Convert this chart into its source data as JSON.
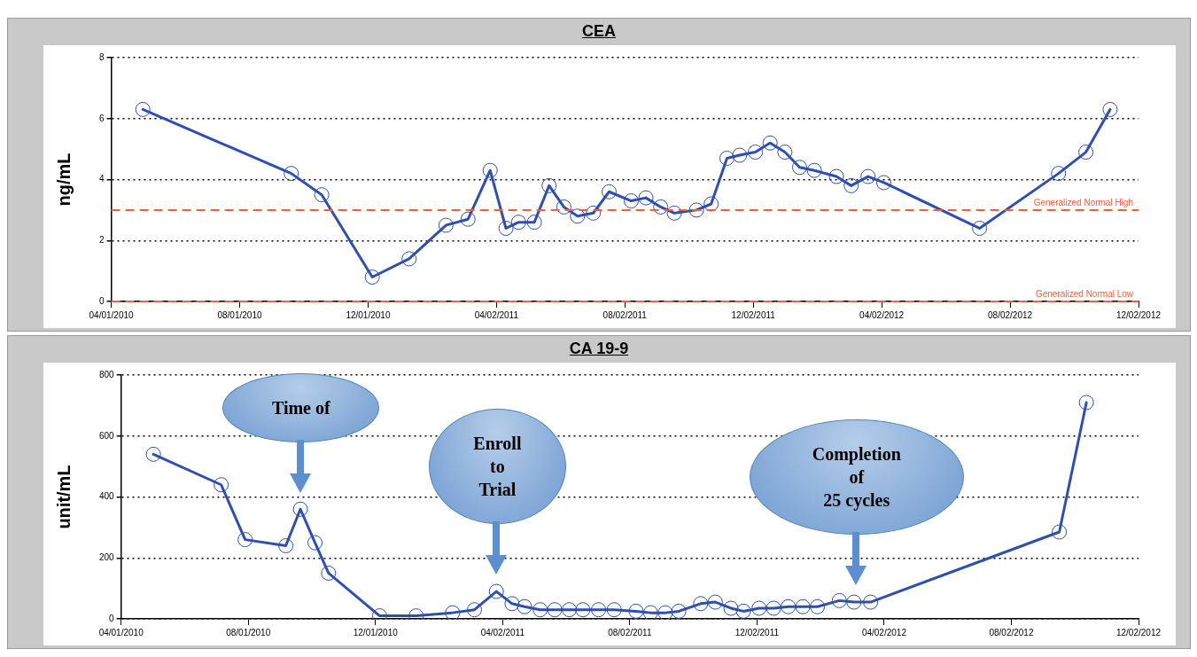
{
  "chart_data": [
    {
      "type": "line",
      "title": "CEA",
      "ylabel": "ng/mL",
      "grid": "y",
      "marker": "circle",
      "line_style": "solid",
      "xlim": [
        "2010-04-01",
        "2012-12-02"
      ],
      "xticks": [
        {
          "value": "2010-04-01",
          "label": "04/01/2010"
        },
        {
          "value": "2010-08-01",
          "label": "08/01/2010"
        },
        {
          "value": "2010-12-01",
          "label": "12/01/2010"
        },
        {
          "value": "2011-04-02",
          "label": "04/02/2011"
        },
        {
          "value": "2011-08-02",
          "label": "08/02/2011"
        },
        {
          "value": "2011-12-02",
          "label": "12/02/2011"
        },
        {
          "value": "2012-04-02",
          "label": "04/02/2012"
        },
        {
          "value": "2012-08-02",
          "label": "08/02/2012"
        },
        {
          "value": "2012-12-02",
          "label": "12/02/2012"
        }
      ],
      "ylim": [
        0,
        8
      ],
      "yticks": [
        0,
        2,
        4,
        6,
        8
      ],
      "x": [
        "2010-05-01",
        "2010-09-19",
        "2010-10-18",
        "2010-12-05",
        "2011-01-09",
        "2011-02-13",
        "2011-03-06",
        "2011-03-27",
        "2011-04-11",
        "2011-04-23",
        "2011-05-08",
        "2011-05-22",
        "2011-06-05",
        "2011-06-18",
        "2011-07-03",
        "2011-07-18",
        "2011-08-08",
        "2011-08-22",
        "2011-09-05",
        "2011-09-18",
        "2011-10-09",
        "2011-10-23",
        "2011-11-07",
        "2011-11-19",
        "2011-12-04",
        "2011-12-18",
        "2012-01-01",
        "2012-01-15",
        "2012-01-29",
        "2012-02-19",
        "2012-03-04",
        "2012-03-20",
        "2012-04-04",
        "2012-07-04",
        "2012-09-17",
        "2012-10-13",
        "2012-11-05"
      ],
      "series": [
        {
          "color": "#2f4fae",
          "values": [
            6.3,
            4.2,
            3.5,
            0.8,
            1.4,
            2.5,
            2.7,
            4.3,
            2.4,
            2.6,
            2.6,
            3.8,
            3.1,
            2.8,
            2.9,
            3.6,
            3.3,
            3.4,
            3.1,
            2.9,
            3.0,
            3.2,
            4.7,
            4.8,
            4.9,
            5.2,
            4.9,
            4.4,
            4.3,
            4.1,
            3.8,
            4.1,
            3.9,
            2.4,
            4.2,
            4.9,
            6.3
          ]
        }
      ],
      "ref_lines": [
        {
          "axis": "y",
          "value": 3,
          "label": "Generalized Normal High",
          "color": "#ff5a3c",
          "line_style": "dashed"
        },
        {
          "axis": "y",
          "value": 0,
          "label": "Generalized Normal Low",
          "color": "#ff5a3c",
          "line_style": "dashed"
        }
      ]
    },
    {
      "type": "line",
      "title": "CA 19-9",
      "ylabel": "unit/mL",
      "grid": "y",
      "marker": "circle",
      "line_style": "solid",
      "xlim": [
        "2010-04-01",
        "2012-12-02"
      ],
      "xticks": [
        {
          "value": "2010-04-01",
          "label": "04/01/2010"
        },
        {
          "value": "2010-08-01",
          "label": "08/01/2010"
        },
        {
          "value": "2010-12-01",
          "label": "12/01/2010"
        },
        {
          "value": "2011-04-02",
          "label": "04/02/2011"
        },
        {
          "value": "2011-08-02",
          "label": "08/02/2011"
        },
        {
          "value": "2011-12-02",
          "label": "12/02/2011"
        },
        {
          "value": "2012-04-02",
          "label": "04/02/2012"
        },
        {
          "value": "2012-08-02",
          "label": "08/02/2012"
        },
        {
          "value": "2012-12-02",
          "label": "12/02/2012"
        }
      ],
      "ylim": [
        0,
        800
      ],
      "yticks": [
        0,
        200,
        400,
        600,
        800
      ],
      "x": [
        "2010-05-02",
        "2010-07-06",
        "2010-07-29",
        "2010-09-06",
        "2010-09-20",
        "2010-10-04",
        "2010-10-17",
        "2010-12-05",
        "2011-01-09",
        "2011-02-13",
        "2011-03-06",
        "2011-03-27",
        "2011-04-11",
        "2011-04-23",
        "2011-05-08",
        "2011-05-22",
        "2011-06-05",
        "2011-06-18",
        "2011-07-03",
        "2011-07-18",
        "2011-08-08",
        "2011-08-22",
        "2011-09-05",
        "2011-09-18",
        "2011-10-09",
        "2011-10-23",
        "2011-11-07",
        "2011-11-19",
        "2011-12-04",
        "2011-12-18",
        "2012-01-01",
        "2012-01-15",
        "2012-01-29",
        "2012-02-19",
        "2012-03-04",
        "2012-03-20",
        "2012-09-17",
        "2012-10-13"
      ],
      "series": [
        {
          "color": "#2f4fae",
          "values": [
            540,
            440,
            260,
            240,
            360,
            250,
            150,
            10,
            10,
            20,
            30,
            90,
            50,
            40,
            30,
            30,
            30,
            30,
            30,
            30,
            25,
            20,
            20,
            25,
            50,
            55,
            35,
            25,
            35,
            35,
            40,
            40,
            40,
            60,
            55,
            55,
            285,
            710
          ]
        }
      ],
      "annotations": [
        "Time of",
        "Enroll\nto\nTrial",
        "Completion\nof\n25 cycles"
      ]
    }
  ]
}
